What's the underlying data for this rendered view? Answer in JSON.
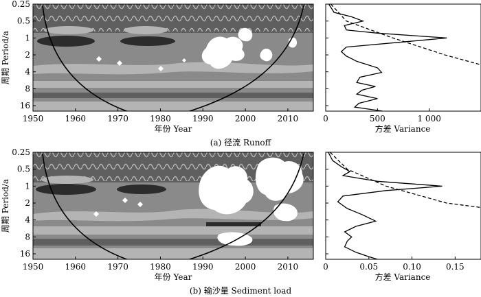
{
  "panels": [
    {
      "caption": "(a) 径流 Runoff",
      "wavelet": {
        "xlabel": "年份 Year",
        "ylabel": "周期 Period/a",
        "xticks": [
          1950,
          1960,
          1970,
          1980,
          1990,
          2000,
          2010
        ],
        "yticks": [
          "0.25",
          "0.5",
          "1",
          "2",
          "4",
          "8",
          "16"
        ]
      },
      "variance": {
        "xlabel": "方差 Variance",
        "xticks": [
          "0",
          "500",
          "1 000"
        ]
      }
    },
    {
      "caption": "(b) 输沙量 Sediment load",
      "wavelet": {
        "xlabel": "年份 Year",
        "ylabel": "周期 Period/a",
        "xticks": [
          1950,
          1960,
          1970,
          1980,
          1990,
          2000,
          2010
        ],
        "yticks": [
          "0.25",
          "0.5",
          "1",
          "2",
          "4",
          "8",
          "16"
        ]
      },
      "variance": {
        "xlabel": "方差 Variance",
        "xticks": [
          "0",
          "0.05",
          "0.10",
          "0.15"
        ]
      }
    }
  ],
  "colors": {
    "power_low": "#8a8a8a",
    "power_mid": "#b4b4b4",
    "power_high": "#5f5f5f",
    "power_peak": "#2c2c2c",
    "power_max": "#ffffff",
    "line": "#000000"
  },
  "chart_data": [
    {
      "type": "heatmap",
      "title": "",
      "xlabel": "年份 Year",
      "ylabel": "周期 Period/a",
      "xlim": [
        1950,
        2016
      ],
      "ylim": [
        0.25,
        20
      ],
      "y_scale": "log2-reversed",
      "cone_of_influence": true,
      "high_power_regions": [
        {
          "year": 1960,
          "period": 0.75
        },
        {
          "year": 1973,
          "period": 0.75
        },
        {
          "year": 1995,
          "period": 1.3
        },
        {
          "year": 2003,
          "period": 1.0
        }
      ]
    },
    {
      "type": "line",
      "title": "",
      "xlabel": "方差 Variance",
      "ylabel": "",
      "xlim": [
        0,
        1500
      ],
      "series": [
        {
          "name": "",
          "style": "solid",
          "points": [
            {
              "period": 0.25,
              "variance": 30
            },
            {
              "period": 0.35,
              "variance": 80
            },
            {
              "period": 0.42,
              "variance": 250
            },
            {
              "period": 0.5,
              "variance": 360
            },
            {
              "period": 0.6,
              "variance": 180
            },
            {
              "period": 0.72,
              "variance": 200
            },
            {
              "period": 0.82,
              "variance": 500
            },
            {
              "period": 1.0,
              "variance": 1170
            },
            {
              "period": 1.2,
              "variance": 700
            },
            {
              "period": 1.45,
              "variance": 200
            },
            {
              "period": 1.75,
              "variance": 150
            },
            {
              "period": 2.1,
              "variance": 200
            },
            {
              "period": 2.6,
              "variance": 300
            },
            {
              "period": 3.4,
              "variance": 500
            },
            {
              "period": 4.1,
              "variance": 540
            },
            {
              "period": 5.0,
              "variance": 330
            },
            {
              "period": 6.2,
              "variance": 300
            },
            {
              "period": 7.3,
              "variance": 480
            },
            {
              "period": 8.5,
              "variance": 350
            },
            {
              "period": 10.0,
              "variance": 300
            },
            {
              "period": 12.0,
              "variance": 500
            },
            {
              "period": 14.5,
              "variance": 320
            },
            {
              "period": 17.0,
              "variance": 280
            },
            {
              "period": 20.0,
              "variance": 550
            }
          ]
        },
        {
          "name": "",
          "style": "dashed",
          "points": [
            {
              "period": 0.25,
              "variance": 50
            },
            {
              "period": 0.5,
              "variance": 200
            },
            {
              "period": 1.0,
              "variance": 650
            },
            {
              "period": 2.0,
              "variance": 1150
            },
            {
              "period": 3.0,
              "variance": 1500
            }
          ]
        }
      ]
    },
    {
      "type": "heatmap",
      "title": "",
      "xlabel": "年份 Year",
      "ylabel": "周期 Period/a",
      "xlim": [
        1950,
        2016
      ],
      "ylim": [
        0.25,
        20
      ],
      "y_scale": "log2-reversed",
      "cone_of_influence": true,
      "high_power_regions": [
        {
          "year": 1960,
          "period": 0.8
        },
        {
          "year": 1998,
          "period": 1.6
        },
        {
          "year": 2007,
          "period": 1.2
        },
        {
          "year": 1998,
          "period": 8.0
        }
      ]
    },
    {
      "type": "line",
      "title": "",
      "xlabel": "方差 Variance",
      "ylabel": "",
      "xlim": [
        0,
        0.18
      ],
      "series": [
        {
          "name": "",
          "style": "solid",
          "points": [
            {
              "period": 0.25,
              "variance": 0.003
            },
            {
              "period": 0.35,
              "variance": 0.008
            },
            {
              "period": 0.45,
              "variance": 0.018
            },
            {
              "period": 0.55,
              "variance": 0.028
            },
            {
              "period": 0.65,
              "variance": 0.02
            },
            {
              "period": 0.82,
              "variance": 0.06
            },
            {
              "period": 1.0,
              "variance": 0.135
            },
            {
              "period": 1.2,
              "variance": 0.07
            },
            {
              "period": 1.5,
              "variance": 0.02
            },
            {
              "period": 1.9,
              "variance": 0.014
            },
            {
              "period": 2.5,
              "variance": 0.025
            },
            {
              "period": 3.2,
              "variance": 0.042
            },
            {
              "period": 4.2,
              "variance": 0.058
            },
            {
              "period": 5.2,
              "variance": 0.035
            },
            {
              "period": 6.5,
              "variance": 0.022
            },
            {
              "period": 8.0,
              "variance": 0.03
            },
            {
              "period": 9.5,
              "variance": 0.025
            },
            {
              "period": 12.0,
              "variance": 0.022
            },
            {
              "period": 15.0,
              "variance": 0.035
            },
            {
              "period": 18.0,
              "variance": 0.05
            },
            {
              "period": 20.0,
              "variance": 0.06
            }
          ]
        },
        {
          "name": "",
          "style": "dashed",
          "points": [
            {
              "period": 0.25,
              "variance": 0.005
            },
            {
              "period": 0.5,
              "variance": 0.025
            },
            {
              "period": 1.0,
              "variance": 0.07
            },
            {
              "period": 2.0,
              "variance": 0.14
            },
            {
              "period": 2.4,
              "variance": 0.18
            }
          ]
        }
      ]
    }
  ]
}
